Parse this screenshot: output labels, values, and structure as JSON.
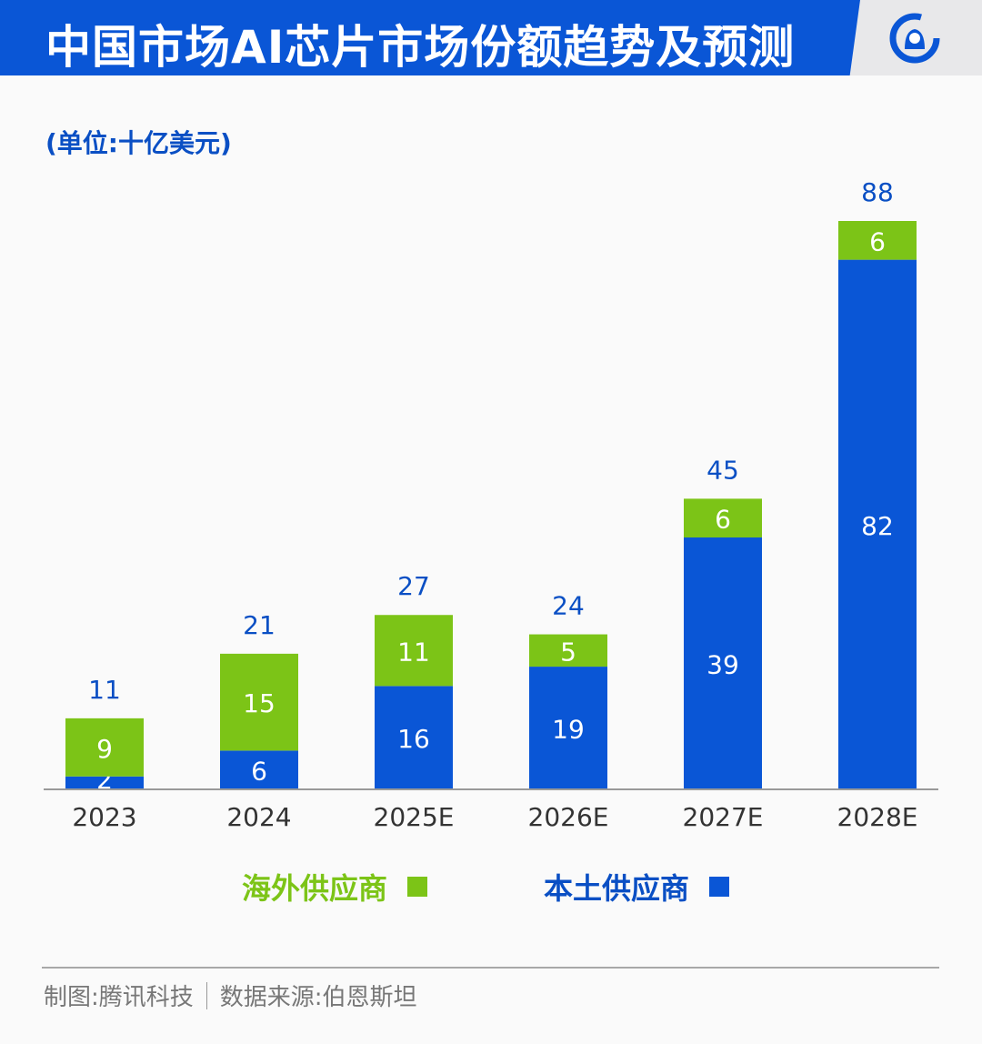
{
  "header": {
    "title": "中国市场AI芯片市场份额趋势及预测",
    "logo_icon": "tencent-news-logo-icon"
  },
  "unit_label": "(单位:十亿美元)",
  "legend": [
    {
      "label": "海外供应商",
      "color": "#7cc417"
    },
    {
      "label": "本土供应商",
      "color": "#0a56d6"
    }
  ],
  "footer": {
    "credit": "制图:腾讯科技",
    "source": "数据来源:伯恩斯坦"
  },
  "chart_data": {
    "type": "bar",
    "stacked": true,
    "categories": [
      "2023",
      "2024",
      "2025E",
      "2026E",
      "2027E",
      "2028E"
    ],
    "series": [
      {
        "name": "本土供应商",
        "color": "#0a56d6",
        "values": [
          2,
          6,
          16,
          19,
          39,
          82
        ]
      },
      {
        "name": "海外供应商",
        "color": "#7cc417",
        "values": [
          9,
          15,
          11,
          5,
          6,
          6
        ]
      }
    ],
    "totals": [
      11,
      21,
      27,
      24,
      45,
      88
    ],
    "ylim": [
      0,
      88
    ],
    "grid": false,
    "legend_placement": "bottom",
    "ylabel": "(单位:十亿美元)"
  }
}
